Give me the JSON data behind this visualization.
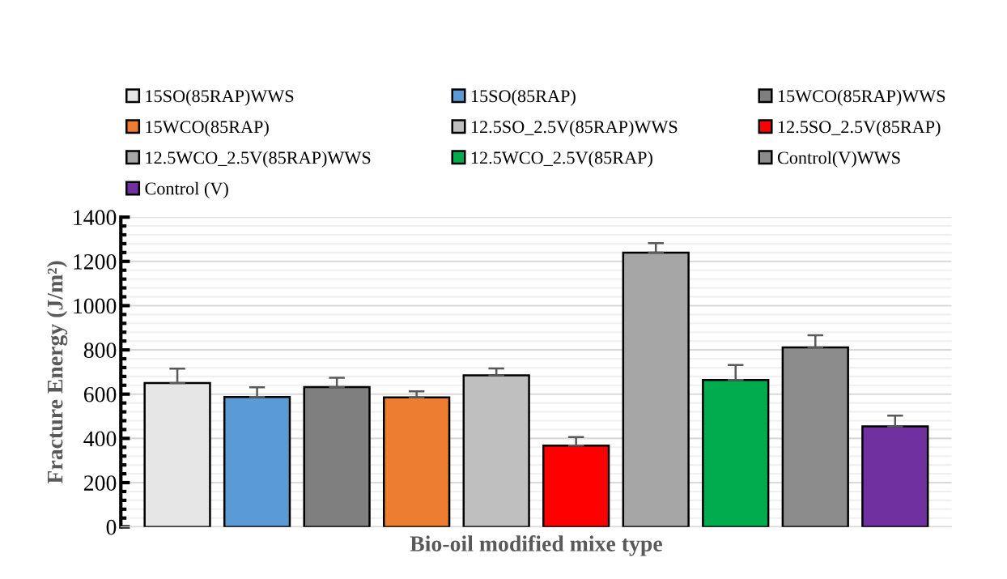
{
  "chart_data": {
    "type": "bar",
    "xlabel": "Bio-oil modified mixe type",
    "ylabel": "Fracture Energy (J/m²)",
    "categories": [
      null
    ],
    "series": [
      {
        "name": "15SO(85RAP)WWS",
        "color": "#e6e6e6",
        "values": [
          650
        ],
        "errors": [
          [
            650,
            715
          ]
        ]
      },
      {
        "name": "15SO(85RAP)",
        "color": "#5b9bd5",
        "values": [
          587
        ],
        "errors": [
          [
            587,
            631
          ]
        ]
      },
      {
        "name": "15WCO(85RAP)WWS",
        "color": "#7f7f7f",
        "values": [
          632
        ],
        "errors": [
          [
            632,
            674
          ]
        ]
      },
      {
        "name": "15WCO(85RAP)",
        "color": "#ed7d31",
        "values": [
          585
        ],
        "errors": [
          [
            585,
            613
          ]
        ]
      },
      {
        "name": "12.5SO_2.5V(85RAP)WWS",
        "color": "#bfbfbf",
        "values": [
          685
        ],
        "errors": [
          [
            685,
            716
          ]
        ]
      },
      {
        "name": "12.5SO_2.5V(85RAP)",
        "color": "#ff0000",
        "values": [
          367
        ],
        "errors": [
          [
            367,
            406
          ]
        ]
      },
      {
        "name": "12.5WCO_2.5V(85RAP)WWS",
        "color": "#a6a6a6",
        "values": [
          1239
        ],
        "errors": [
          [
            1239,
            1282
          ]
        ]
      },
      {
        "name": "12.5WCO_2.5V(85RAP)",
        "color": "#00ac4e",
        "values": [
          664
        ],
        "errors": [
          [
            664,
            732
          ]
        ]
      },
      {
        "name": "Control(V)WWS",
        "color": "#8c8c8c",
        "values": [
          811
        ],
        "errors": [
          [
            811,
            866
          ]
        ]
      },
      {
        "name": "Control (V)",
        "color": "#7030a0",
        "values": [
          454
        ],
        "errors": [
          [
            454,
            503
          ]
        ]
      }
    ],
    "ylim": [
      0,
      1400
    ],
    "yticks": [
      0,
      200,
      400,
      600,
      800,
      1000,
      1200,
      1400
    ],
    "grid": "y",
    "legend": "top"
  }
}
